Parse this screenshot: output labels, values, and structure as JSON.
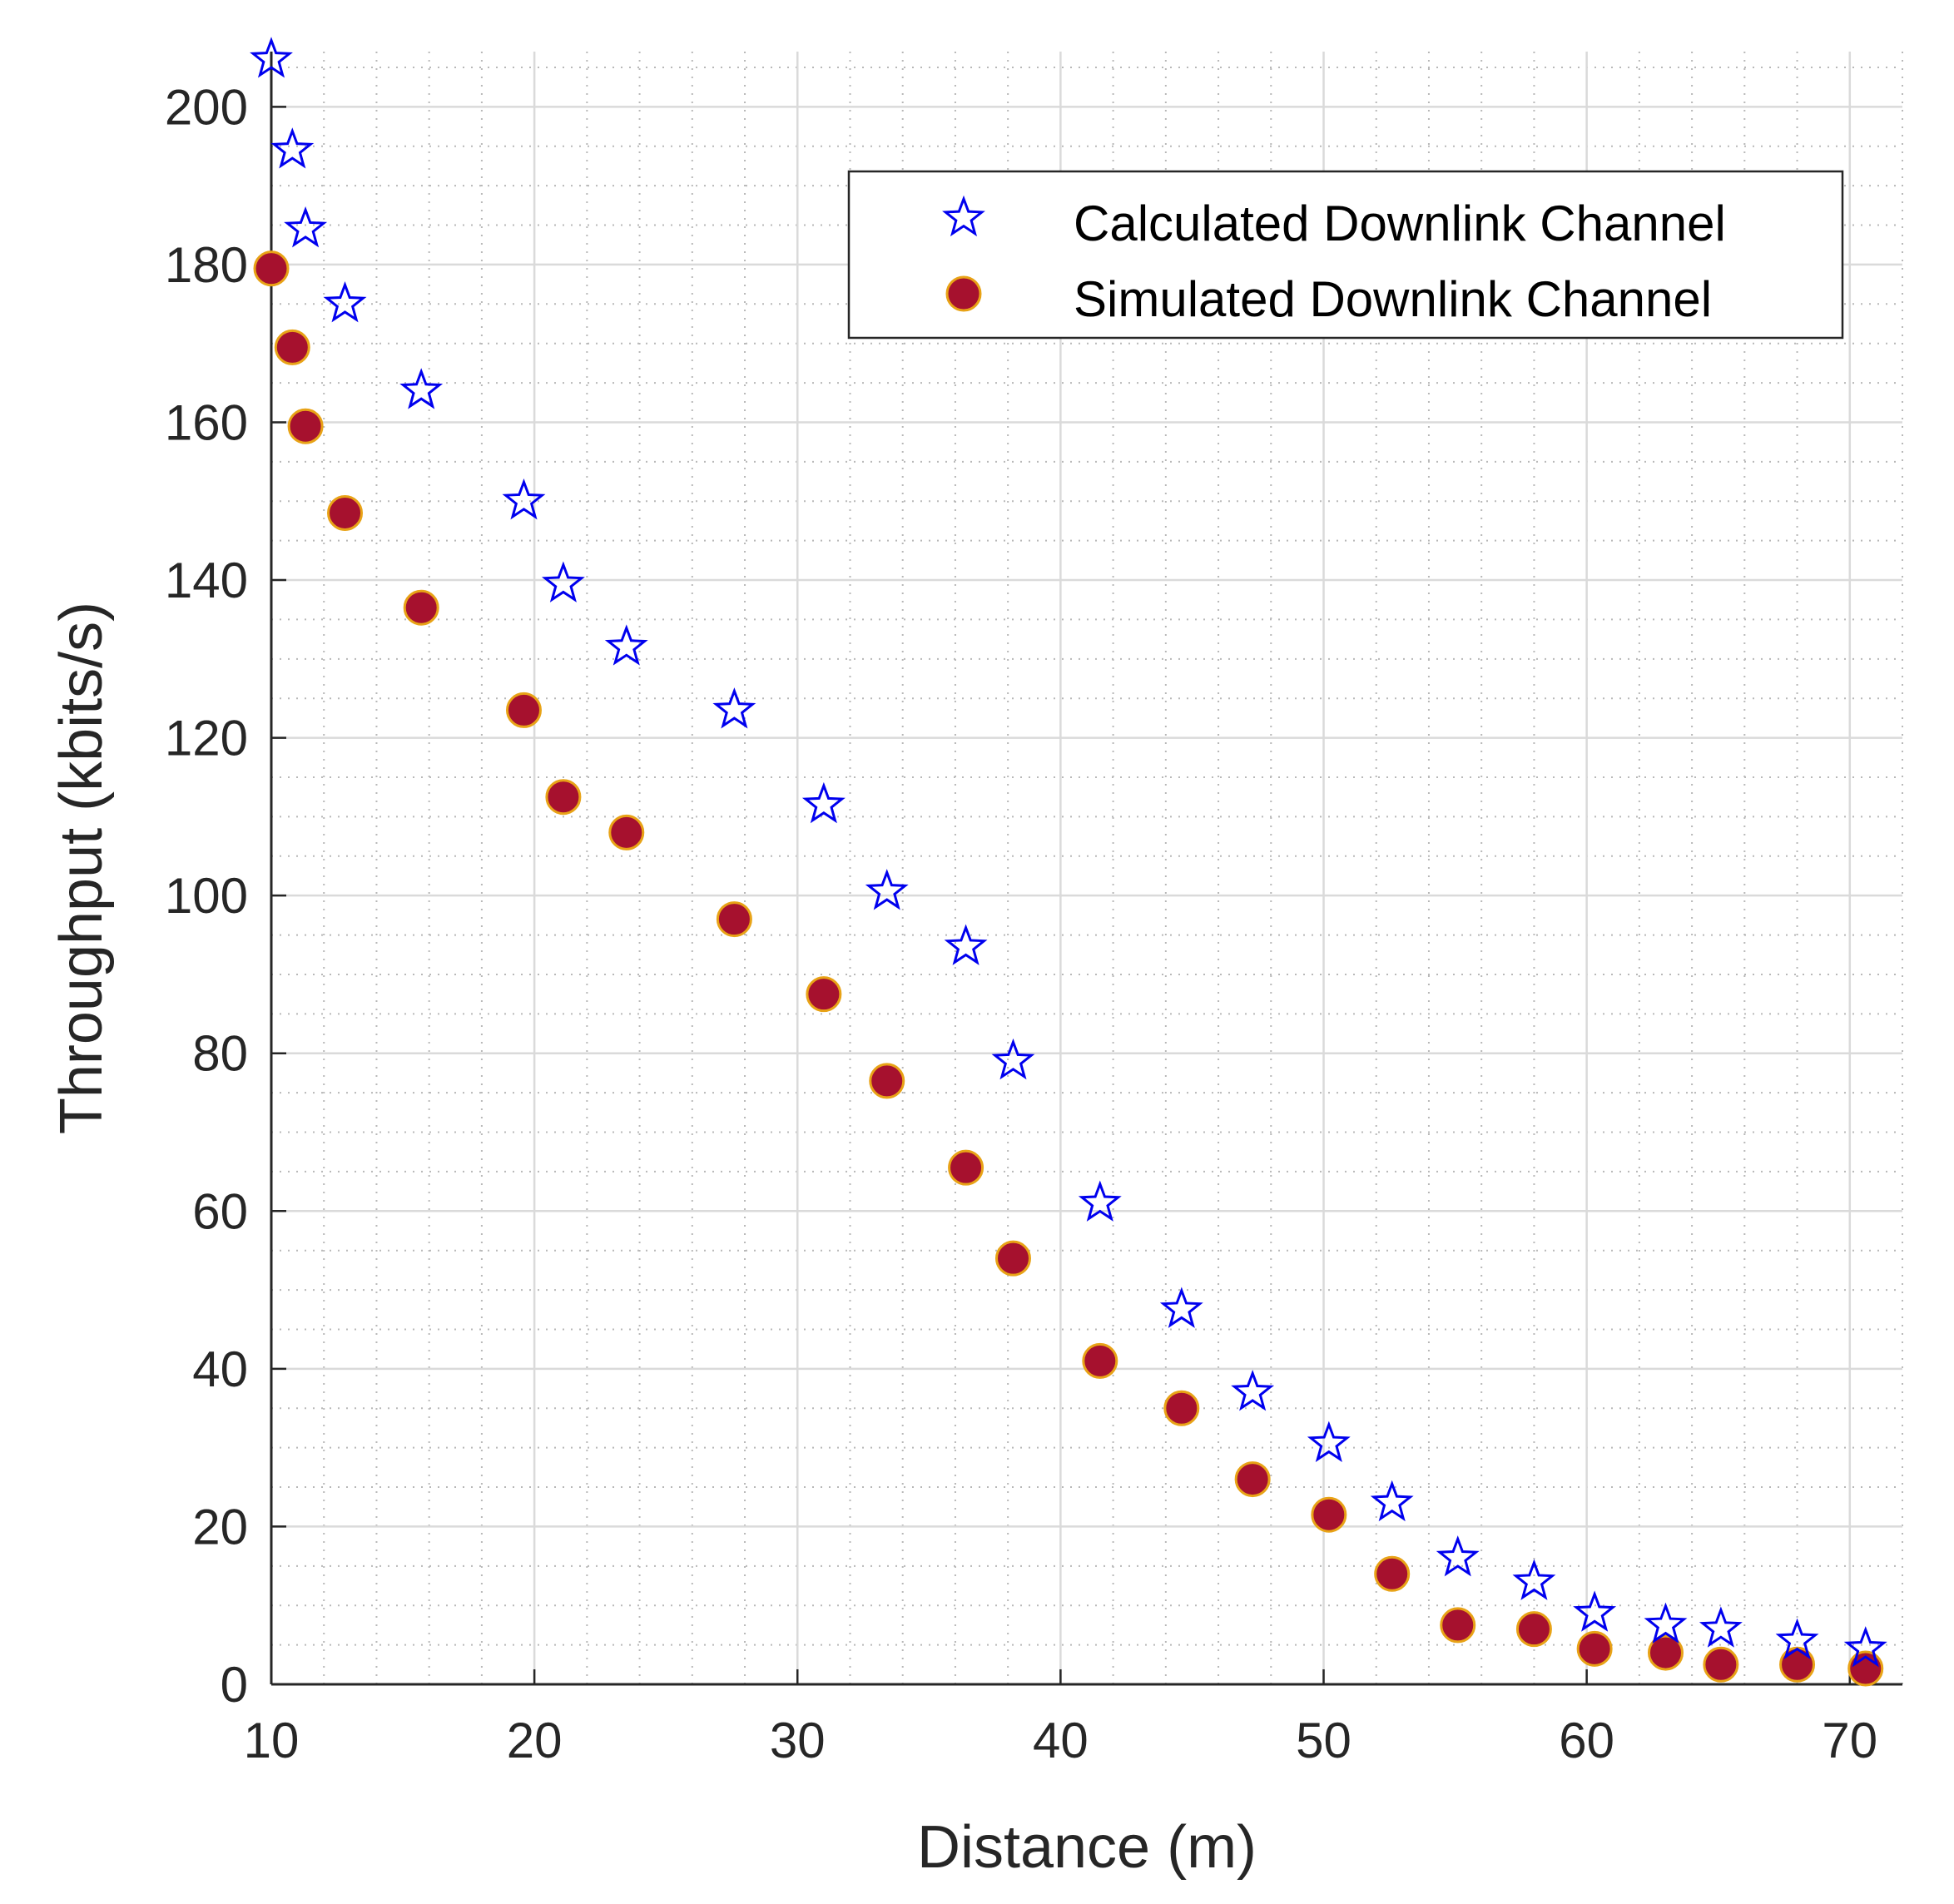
{
  "chart_data": {
    "type": "scatter",
    "title": "",
    "xlabel": "Distance (m)",
    "ylabel": "Throughput (kbits/s)",
    "xlim": [
      10,
      72
    ],
    "ylim": [
      0,
      207
    ],
    "xticks": [
      10,
      20,
      30,
      40,
      50,
      60,
      70
    ],
    "yticks": [
      0,
      20,
      40,
      60,
      80,
      100,
      120,
      140,
      160,
      180,
      200
    ],
    "xtick_labels": [
      "10",
      "20",
      "30",
      "40",
      "50",
      "60",
      "70"
    ],
    "ytick_labels": [
      "0",
      "20",
      "40",
      "60",
      "80",
      "100",
      "120",
      "140",
      "160",
      "180",
      "200"
    ],
    "grid": true,
    "minor_grid": true,
    "legend_position": "top-right",
    "series": [
      {
        "name": "Calculated Downlink Channel",
        "marker": "star",
        "color": "#0000ee",
        "x": [
          10.0,
          10.8,
          11.3,
          12.8,
          15.7,
          19.6,
          21.1,
          23.5,
          27.6,
          31.0,
          33.4,
          36.4,
          38.2,
          41.5,
          44.6,
          47.3,
          50.2,
          52.6,
          55.1,
          58.0,
          60.3,
          63.0,
          65.1,
          68.0,
          70.6
        ],
        "y": [
          206.0,
          194.5,
          184.5,
          175.0,
          164.0,
          150.0,
          139.5,
          131.5,
          123.5,
          111.5,
          100.5,
          93.5,
          79.0,
          61.0,
          47.5,
          37.0,
          30.5,
          23.0,
          16.0,
          13.0,
          9.0,
          7.5,
          7.0,
          5.5,
          4.5
        ]
      },
      {
        "name": "Simulated Downlink Channel",
        "marker": "circle",
        "color": "#a6112e",
        "edge_color": "#e8a317",
        "x": [
          10.0,
          10.8,
          11.3,
          12.8,
          15.7,
          19.6,
          21.1,
          23.5,
          27.6,
          31.0,
          33.4,
          36.4,
          38.2,
          41.5,
          44.6,
          47.3,
          50.2,
          52.6,
          55.1,
          58.0,
          60.3,
          63.0,
          65.1,
          68.0,
          70.6
        ],
        "y": [
          179.5,
          169.5,
          159.5,
          148.5,
          136.5,
          123.5,
          112.5,
          108.0,
          97.0,
          87.5,
          76.5,
          65.5,
          54.0,
          41.0,
          35.0,
          26.0,
          21.5,
          14.0,
          7.5,
          7.0,
          4.5,
          4.0,
          2.5,
          2.5,
          2.0
        ]
      }
    ]
  }
}
